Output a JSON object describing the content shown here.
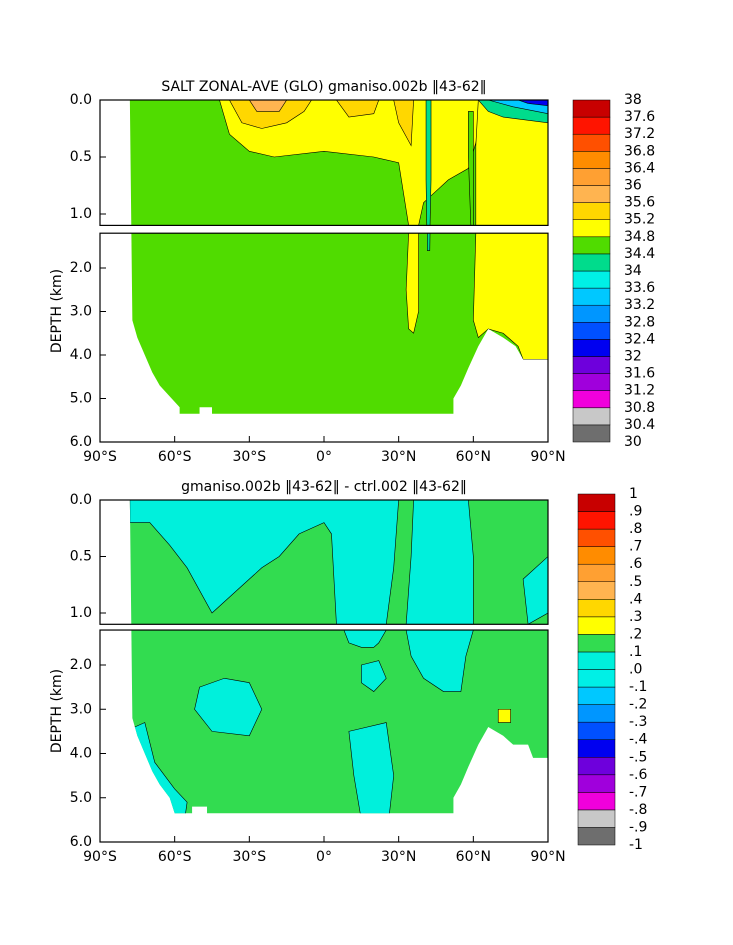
{
  "chart_data": [
    {
      "type": "contour",
      "title": "SALT ZONAL-AVE (GLO) gmaniso.002b ‖43-62‖",
      "ylabel": "DEPTH (km)",
      "xlim": [
        -90,
        90
      ],
      "xticks": [
        {
          "value": -90,
          "label": "90°S"
        },
        {
          "value": -60,
          "label": "60°S"
        },
        {
          "value": -30,
          "label": "30°S"
        },
        {
          "value": 0,
          "label": "0°"
        },
        {
          "value": 30,
          "label": "30°N"
        },
        {
          "value": 60,
          "label": "60°N"
        },
        {
          "value": 90,
          "label": "90°N"
        }
      ],
      "ylim": [
        6,
        0
      ],
      "yticks": [
        {
          "value": 0,
          "label": "0.0"
        },
        {
          "value": 0.5,
          "label": "0.5"
        },
        {
          "value": 1,
          "label": "1.0"
        },
        {
          "value": 2,
          "label": "2.0"
        },
        {
          "value": 3,
          "label": "3.0"
        },
        {
          "value": 4,
          "label": "4.0"
        },
        {
          "value": 5,
          "label": "5.0"
        },
        {
          "value": 6,
          "label": "6.0"
        }
      ],
      "levels": [
        30,
        30.4,
        30.8,
        31.2,
        31.6,
        32,
        32.4,
        32.8,
        33.2,
        33.6,
        34,
        34.4,
        34.8,
        35.2,
        35.6,
        36,
        36.4,
        36.8,
        37.2,
        37.6,
        38
      ],
      "colors": [
        "#6e6e6e",
        "#c8c8c8",
        "#f000dc",
        "#a000dc",
        "#6e00dc",
        "#0000f0",
        "#0050ff",
        "#0096ff",
        "#00c8ff",
        "#00f0e6",
        "#00dc8c",
        "#50dc00",
        "#ffff00",
        "#ffd700",
        "#ffb450",
        "#ffa032",
        "#ff8c00",
        "#ff5000",
        "#ff1400",
        "#c80000"
      ]
    },
    {
      "type": "contour",
      "title": "gmaniso.002b ‖43-62‖ - ctrl.002 ‖43-62‖",
      "ylabel": "DEPTH (km)",
      "xlim": [
        -90,
        90
      ],
      "xticks": [
        {
          "value": -90,
          "label": "90°S"
        },
        {
          "value": -60,
          "label": "60°S"
        },
        {
          "value": -30,
          "label": "30°S"
        },
        {
          "value": 0,
          "label": "0°"
        },
        {
          "value": 30,
          "label": "30°N"
        },
        {
          "value": 60,
          "label": "60°N"
        },
        {
          "value": 90,
          "label": "90°N"
        }
      ],
      "ylim": [
        6,
        0
      ],
      "yticks": [
        {
          "value": 0,
          "label": "0.0"
        },
        {
          "value": 0.5,
          "label": "0.5"
        },
        {
          "value": 1,
          "label": "1.0"
        },
        {
          "value": 2,
          "label": "2.0"
        },
        {
          "value": 3,
          "label": "3.0"
        },
        {
          "value": 4,
          "label": "4.0"
        },
        {
          "value": 5,
          "label": "5.0"
        },
        {
          "value": 6,
          "label": "6.0"
        }
      ],
      "levels": [
        -1,
        {
          "value": -0.9,
          "label": "-.9"
        },
        {
          "value": -0.8,
          "label": "-.8"
        },
        {
          "value": -0.7,
          "label": "-.7"
        },
        {
          "value": -0.6,
          "label": "-.6"
        },
        {
          "value": -0.5,
          "label": "-.5"
        },
        {
          "value": -0.4,
          "label": "-.4"
        },
        {
          "value": -0.3,
          "label": "-.3"
        },
        {
          "value": -0.2,
          "label": "-.2"
        },
        {
          "value": -0.1,
          "label": "-.1"
        },
        {
          "value": 0,
          "label": ".0"
        },
        {
          "value": 0.1,
          "label": ".1"
        },
        {
          "value": 0.2,
          "label": ".2"
        },
        {
          "value": 0.3,
          "label": ".3"
        },
        {
          "value": 0.4,
          "label": ".4"
        },
        {
          "value": 0.5,
          "label": ".5"
        },
        {
          "value": 0.6,
          "label": ".6"
        },
        {
          "value": 0.7,
          "label": ".7"
        },
        {
          "value": 0.8,
          "label": ".8"
        },
        {
          "value": 0.9,
          "label": ".9"
        },
        1
      ],
      "colors": [
        "#6e6e6e",
        "#c8c8c8",
        "#f000dc",
        "#a000dc",
        "#6e00dc",
        "#0000f0",
        "#0050ff",
        "#0096ff",
        "#00c8ff",
        "#00f0e6",
        "#00f0dc",
        "#32dc50",
        "#ffff00",
        "#ffd700",
        "#ffb450",
        "#ffa032",
        "#ff8c00",
        "#ff5000",
        "#ff1400",
        "#c80000"
      ]
    }
  ]
}
